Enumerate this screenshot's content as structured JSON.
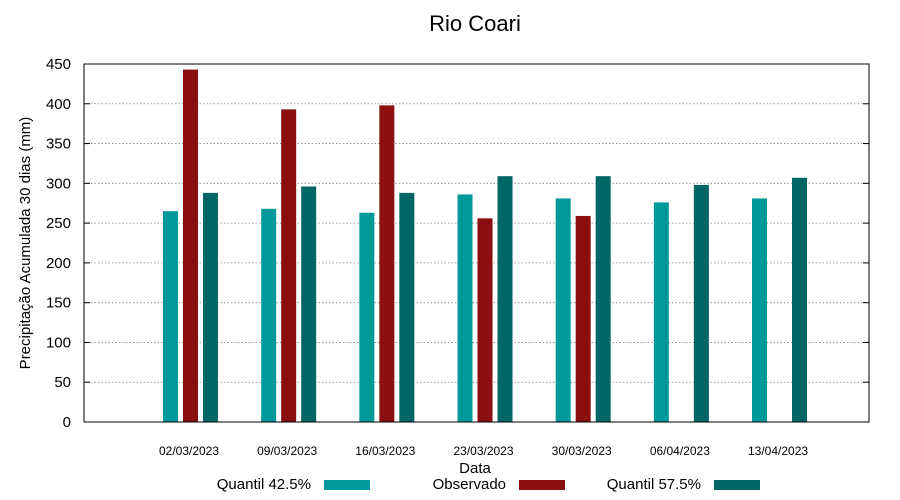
{
  "chart_data": {
    "type": "bar",
    "title": "Rio Coari",
    "xlabel": "Data",
    "ylabel": "Precipitação Acumulada 30 dias (mm)",
    "ylim": [
      0,
      450
    ],
    "yticks": [
      0,
      50,
      100,
      150,
      200,
      250,
      300,
      350,
      400,
      450
    ],
    "grid": true,
    "legend_position": "bottom",
    "categories": [
      "02/03/2023",
      "09/03/2023",
      "16/03/2023",
      "23/03/2023",
      "30/03/2023",
      "06/04/2023",
      "13/04/2023"
    ],
    "series": [
      {
        "name": "Quantil 42.5%",
        "color": "#009999",
        "values": [
          265,
          268,
          263,
          286,
          281,
          276,
          281
        ]
      },
      {
        "name": "Observado",
        "color": "#8b0f0f",
        "values": [
          443,
          393,
          398,
          256,
          259,
          null,
          null
        ]
      },
      {
        "name": "Quantil 57.5%",
        "color": "#006666",
        "values": [
          288,
          296,
          288,
          309,
          309,
          298,
          307
        ]
      }
    ]
  }
}
